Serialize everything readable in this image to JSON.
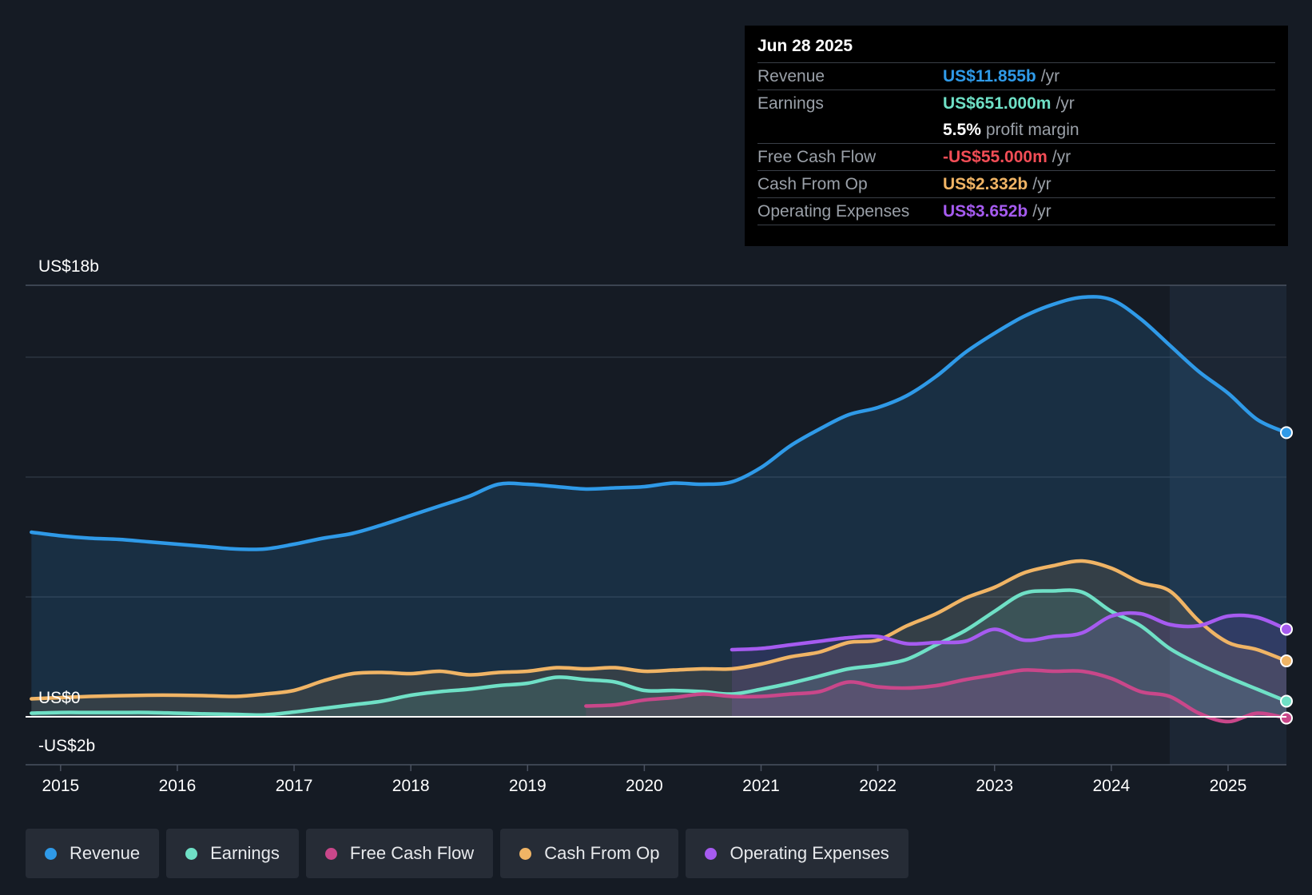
{
  "tooltip": {
    "date": "Jun 28 2025",
    "rows": [
      {
        "label": "Revenue",
        "value": "US$11.855b",
        "unit": "/yr",
        "color": "#2f9ae8"
      },
      {
        "label": "Earnings",
        "value": "US$651.000m",
        "unit": "/yr",
        "color": "#6fe0c6"
      },
      {
        "label": "",
        "value": "5.5%",
        "unit": "profit margin",
        "color": "#ffffff"
      },
      {
        "label": "Free Cash Flow",
        "value": "-US$55.000m",
        "unit": "/yr",
        "color": "#f24d56"
      },
      {
        "label": "Cash From Op",
        "value": "US$2.332b",
        "unit": "/yr",
        "color": "#f0b465"
      },
      {
        "label": "Operating Expenses",
        "value": "US$3.652b",
        "unit": "/yr",
        "color": "#a65bf0"
      }
    ]
  },
  "legend": [
    {
      "label": "Revenue",
      "color": "#2f9ae8"
    },
    {
      "label": "Earnings",
      "color": "#6fe0c6"
    },
    {
      "label": "Free Cash Flow",
      "color": "#c9478a"
    },
    {
      "label": "Cash From Op",
      "color": "#f0b465"
    },
    {
      "label": "Operating Expenses",
      "color": "#a65bf0"
    }
  ],
  "chart_data": {
    "type": "area",
    "ylim": [
      -2,
      18
    ],
    "y_tick_labels": [
      "US$18b",
      "US$0",
      "-US$2b"
    ],
    "x_ticks": [
      2015,
      2016,
      2017,
      2018,
      2019,
      2020,
      2021,
      2022,
      2023,
      2024,
      2025
    ],
    "x_range": [
      2014.7,
      2025.5
    ],
    "forecast_start": 2024.5,
    "series": [
      {
        "name": "Revenue",
        "color": "#2f9ae8",
        "x": [
          2014.75,
          2015.0,
          2015.25,
          2015.5,
          2015.75,
          2016.0,
          2016.25,
          2016.5,
          2016.75,
          2017.0,
          2017.25,
          2017.5,
          2017.75,
          2018.0,
          2018.25,
          2018.5,
          2018.75,
          2019.0,
          2019.25,
          2019.5,
          2019.75,
          2020.0,
          2020.25,
          2020.5,
          2020.75,
          2021.0,
          2021.25,
          2021.5,
          2021.75,
          2022.0,
          2022.25,
          2022.5,
          2022.75,
          2023.0,
          2023.25,
          2023.5,
          2023.75,
          2024.0,
          2024.25,
          2024.5,
          2024.75,
          2025.0,
          2025.25,
          2025.5
        ],
        "y": [
          7.7,
          7.55,
          7.45,
          7.4,
          7.3,
          7.2,
          7.1,
          7.0,
          7.0,
          7.2,
          7.45,
          7.65,
          8.0,
          8.4,
          8.8,
          9.2,
          9.7,
          9.7,
          9.6,
          9.5,
          9.55,
          9.6,
          9.75,
          9.7,
          9.8,
          10.4,
          11.3,
          12.0,
          12.6,
          12.9,
          13.4,
          14.2,
          15.2,
          16.0,
          16.7,
          17.2,
          17.5,
          17.4,
          16.6,
          15.5,
          14.4,
          13.5,
          12.4,
          11.855
        ]
      },
      {
        "name": "Cash From Op",
        "color": "#f0b465",
        "x": [
          2014.75,
          2015.0,
          2015.25,
          2015.5,
          2015.75,
          2016.0,
          2016.25,
          2016.5,
          2016.75,
          2017.0,
          2017.25,
          2017.5,
          2017.75,
          2018.0,
          2018.25,
          2018.5,
          2018.75,
          2019.0,
          2019.25,
          2019.5,
          2019.75,
          2020.0,
          2020.25,
          2020.5,
          2020.75,
          2021.0,
          2021.25,
          2021.5,
          2021.75,
          2022.0,
          2022.25,
          2022.5,
          2022.75,
          2023.0,
          2023.25,
          2023.5,
          2023.75,
          2024.0,
          2024.25,
          2024.5,
          2024.75,
          2025.0,
          2025.25,
          2025.5
        ],
        "y": [
          0.75,
          0.8,
          0.85,
          0.88,
          0.9,
          0.9,
          0.88,
          0.85,
          0.95,
          1.1,
          1.5,
          1.8,
          1.85,
          1.8,
          1.9,
          1.75,
          1.85,
          1.9,
          2.05,
          2.0,
          2.05,
          1.9,
          1.95,
          2.0,
          2.0,
          2.2,
          2.5,
          2.7,
          3.1,
          3.2,
          3.8,
          4.3,
          4.95,
          5.4,
          6.0,
          6.3,
          6.5,
          6.2,
          5.6,
          5.25,
          4.0,
          3.1,
          2.8,
          2.332
        ]
      },
      {
        "name": "Earnings",
        "color": "#6fe0c6",
        "x": [
          2014.75,
          2015.0,
          2015.25,
          2015.5,
          2015.75,
          2016.0,
          2016.25,
          2016.5,
          2016.75,
          2017.0,
          2017.25,
          2017.5,
          2017.75,
          2018.0,
          2018.25,
          2018.5,
          2018.75,
          2019.0,
          2019.25,
          2019.5,
          2019.75,
          2020.0,
          2020.25,
          2020.5,
          2020.75,
          2021.0,
          2021.25,
          2021.5,
          2021.75,
          2022.0,
          2022.25,
          2022.5,
          2022.75,
          2023.0,
          2023.25,
          2023.5,
          2023.75,
          2024.0,
          2024.25,
          2024.5,
          2024.75,
          2025.0,
          2025.25,
          2025.5
        ],
        "y": [
          0.15,
          0.18,
          0.18,
          0.18,
          0.18,
          0.15,
          0.12,
          0.1,
          0.08,
          0.2,
          0.35,
          0.5,
          0.65,
          0.9,
          1.05,
          1.15,
          1.3,
          1.4,
          1.65,
          1.55,
          1.45,
          1.1,
          1.1,
          1.05,
          0.95,
          1.15,
          1.4,
          1.7,
          2.0,
          2.15,
          2.4,
          3.0,
          3.6,
          4.4,
          5.15,
          5.25,
          5.2,
          4.4,
          3.8,
          2.85,
          2.2,
          1.65,
          1.15,
          0.651
        ]
      },
      {
        "name": "Free Cash Flow",
        "color": "#c9478a",
        "x": [
          2019.5,
          2019.75,
          2020.0,
          2020.25,
          2020.5,
          2020.75,
          2021.0,
          2021.25,
          2021.5,
          2021.75,
          2022.0,
          2022.25,
          2022.5,
          2022.75,
          2023.0,
          2023.25,
          2023.5,
          2023.75,
          2024.0,
          2024.25,
          2024.5,
          2024.75,
          2025.0,
          2025.25,
          2025.5
        ],
        "y": [
          0.45,
          0.5,
          0.7,
          0.8,
          0.95,
          0.85,
          0.85,
          0.95,
          1.05,
          1.45,
          1.25,
          1.2,
          1.3,
          1.55,
          1.75,
          1.95,
          1.9,
          1.9,
          1.6,
          1.05,
          0.85,
          0.15,
          -0.2,
          0.15,
          -0.055
        ]
      },
      {
        "name": "Operating Expenses",
        "color": "#a65bf0",
        "x": [
          2020.75,
          2021.0,
          2021.25,
          2021.5,
          2021.75,
          2022.0,
          2022.25,
          2022.5,
          2022.75,
          2023.0,
          2023.25,
          2023.5,
          2023.75,
          2024.0,
          2024.25,
          2024.5,
          2024.75,
          2025.0,
          2025.25,
          2025.5
        ],
        "y": [
          2.8,
          2.85,
          3.0,
          3.15,
          3.3,
          3.35,
          3.05,
          3.1,
          3.15,
          3.65,
          3.2,
          3.35,
          3.5,
          4.2,
          4.3,
          3.85,
          3.8,
          4.2,
          4.15,
          3.652
        ]
      }
    ]
  }
}
